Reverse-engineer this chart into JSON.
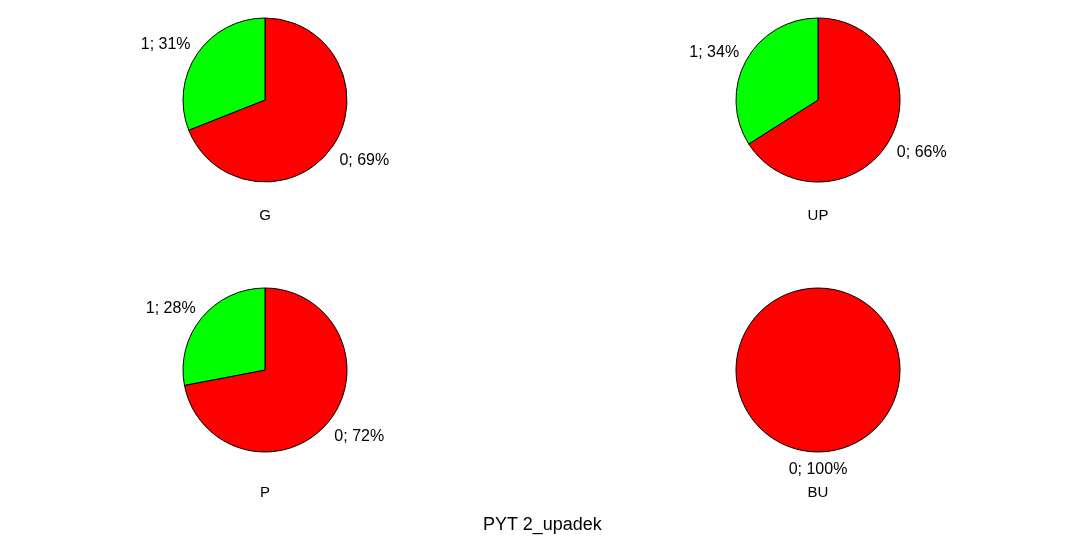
{
  "chart_data": [
    {
      "type": "pie",
      "title": "G",
      "categories": [
        "0",
        "1"
      ],
      "values": [
        69,
        31
      ],
      "colors": [
        "#ff0000",
        "#00ff00"
      ],
      "value_labels": [
        "; 69%",
        "; 31%"
      ]
    },
    {
      "type": "pie",
      "title": "UP",
      "categories": [
        "0",
        "1"
      ],
      "values": [
        66,
        34
      ],
      "colors": [
        "#ff0000",
        "#00ff00"
      ],
      "value_labels": [
        "; 66%",
        "; 34%"
      ]
    },
    {
      "type": "pie",
      "title": "P",
      "categories": [
        "0",
        "1"
      ],
      "values": [
        72,
        28
      ],
      "colors": [
        "#ff0000",
        "#00ff00"
      ],
      "value_labels": [
        "; 72%",
        "; 28%"
      ]
    },
    {
      "type": "pie",
      "title": "BU",
      "categories": [
        "0"
      ],
      "values": [
        100
      ],
      "colors": [
        "#ff0000"
      ],
      "value_labels": [
        "; 100%"
      ],
      "annotations": [
        "PYT 2_upadek"
      ]
    }
  ]
}
